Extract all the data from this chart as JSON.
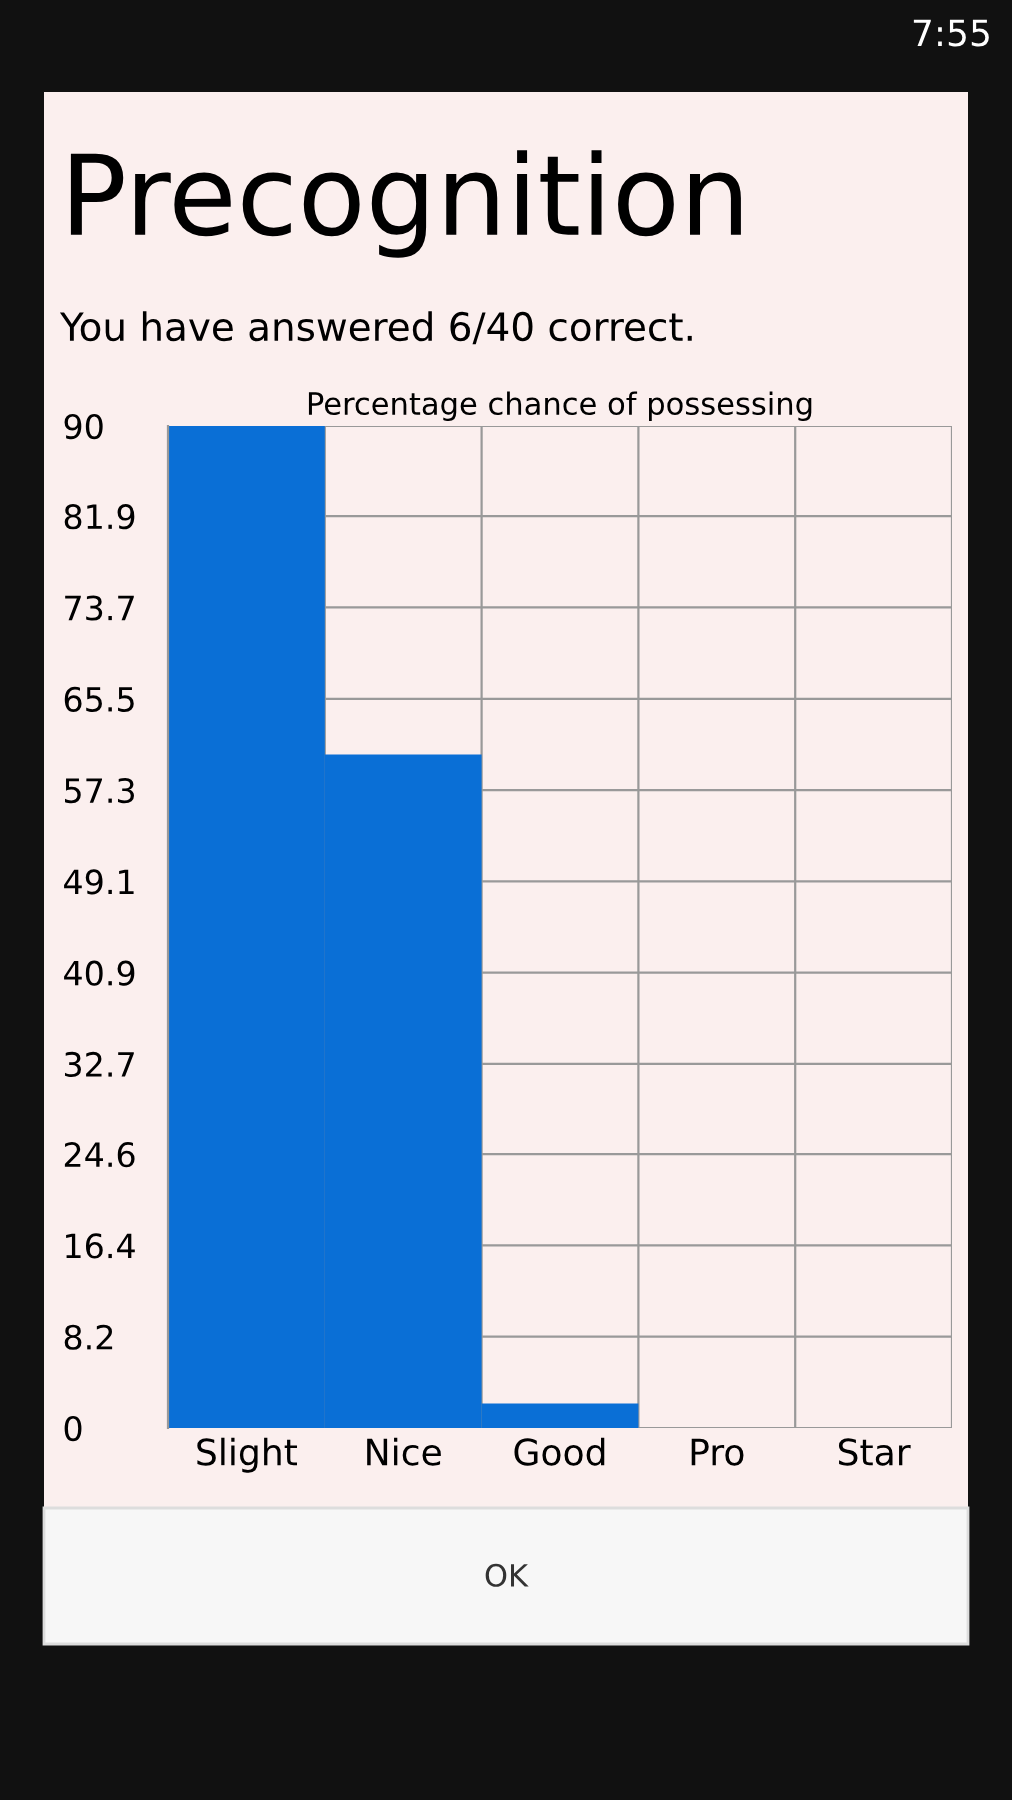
{
  "chart_data": {
    "type": "bar",
    "title": "Precognition",
    "subtitle": "You have answered 6/40 correct.",
    "xlabel": "Percentage chance of possessing",
    "categories": [
      "Slight",
      "Nice",
      "Good",
      "Pro",
      "Star"
    ],
    "values": [
      90,
      60.5,
      2.2,
      0,
      0
    ],
    "color": "#0a6fd6",
    "ylim": [
      0,
      90
    ],
    "yticks": [
      0,
      8.2,
      16.4,
      24.6,
      32.7,
      40.9,
      49.1,
      57.3,
      65.5,
      73.7,
      81.9,
      90
    ],
    "grid": true,
    "annotations": [
      "OK",
      "7:55"
    ]
  }
}
